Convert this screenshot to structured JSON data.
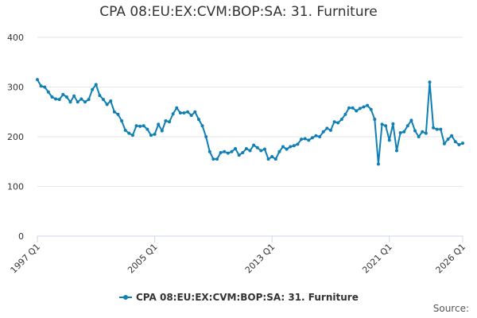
{
  "chart_data": {
    "type": "line",
    "title": "CPA 08:EU:EX:CVM:BOP:SA: 31. Furniture",
    "source_label": "Source:",
    "categories": [
      "1997 Q1",
      null,
      null,
      null,
      null,
      null,
      null,
      null,
      null,
      null,
      null,
      null,
      null,
      null,
      null,
      null,
      null,
      null,
      null,
      null,
      null,
      null,
      null,
      null,
      null,
      null,
      null,
      null,
      null,
      null,
      null,
      null,
      "2005 Q1",
      null,
      null,
      null,
      null,
      null,
      null,
      null,
      null,
      null,
      null,
      null,
      null,
      null,
      null,
      null,
      null,
      null,
      null,
      null,
      null,
      null,
      null,
      null,
      null,
      null,
      null,
      null,
      null,
      null,
      null,
      null,
      "2013 Q1",
      null,
      null,
      null,
      null,
      null,
      null,
      null,
      null,
      null,
      null,
      null,
      null,
      null,
      null,
      null,
      null,
      null,
      null,
      null,
      null,
      null,
      null,
      null,
      null,
      null,
      null,
      null,
      null,
      null,
      null,
      null,
      "2021 Q1",
      null,
      null,
      null,
      null,
      null,
      null,
      null,
      null,
      null,
      null,
      null,
      null,
      null,
      null,
      null,
      null,
      null,
      null,
      null,
      "2026 Q1"
    ],
    "series": [
      {
        "name": "CPA 08:EU:EX:CVM:BOP:SA: 31. Furniture",
        "color": "#0f7fb4",
        "values": [
          315,
          302,
          300,
          290,
          280,
          276,
          275,
          285,
          280,
          270,
          282,
          270,
          276,
          270,
          275,
          295,
          305,
          283,
          275,
          265,
          272,
          250,
          245,
          232,
          213,
          207,
          203,
          222,
          221,
          222,
          215,
          203,
          205,
          225,
          212,
          232,
          230,
          246,
          258,
          248,
          248,
          250,
          243,
          250,
          235,
          222,
          200,
          170,
          155,
          155,
          168,
          170,
          167,
          170,
          176,
          163,
          168,
          176,
          172,
          183,
          178,
          172,
          175,
          155,
          160,
          155,
          170,
          180,
          175,
          180,
          182,
          185,
          195,
          196,
          193,
          198,
          202,
          200,
          210,
          217,
          213,
          230,
          228,
          235,
          245,
          258,
          258,
          252,
          257,
          260,
          263,
          255,
          235,
          145,
          225,
          222,
          193,
          226,
          172,
          208,
          210,
          222,
          233,
          212,
          200,
          210,
          207,
          310,
          218,
          215,
          215,
          186,
          195,
          202,
          190,
          184,
          187
        ]
      }
    ],
    "ylim": [
      0,
      400
    ],
    "yticks": [
      0,
      100,
      200,
      300,
      400
    ],
    "grid": true,
    "legend": "bottom"
  }
}
